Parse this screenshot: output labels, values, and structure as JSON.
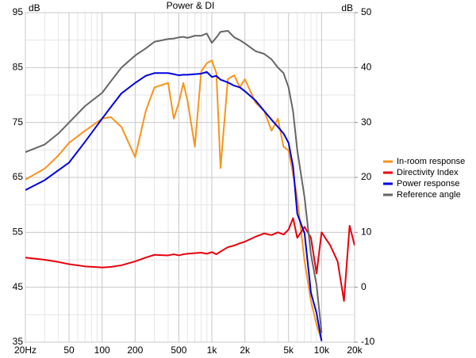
{
  "chart_data": {
    "type": "line",
    "title": "Power & DI",
    "y_label": "dB",
    "y2_label": "dB",
    "log_x": true,
    "grid": true,
    "legend_position": "right",
    "x": [
      20,
      30,
      40,
      50,
      70,
      100,
      120,
      150,
      200,
      250,
      300,
      400,
      450,
      500,
      550,
      600,
      700,
      800,
      900,
      1000,
      1100,
      1200,
      1400,
      1600,
      1800,
      2000,
      2500,
      3000,
      3500,
      4000,
      4500,
      5000,
      5500,
      6000,
      7000,
      8000,
      9000,
      10000,
      12000,
      14000,
      16000,
      18000,
      20000
    ],
    "xlim": [
      20,
      20000
    ],
    "xticks": [
      {
        "value": 20,
        "label": "20Hz"
      },
      50,
      100,
      200,
      500,
      {
        "value": 1000,
        "label": "1k"
      },
      {
        "value": 2000,
        "label": "2k"
      },
      {
        "value": 5000,
        "label": "5k"
      },
      {
        "value": 10000,
        "label": "10k"
      },
      {
        "value": 20000,
        "label": "20k"
      }
    ],
    "x_minor_ticks": [
      30,
      40,
      60,
      70,
      80,
      90,
      300,
      400,
      600,
      700,
      800,
      900,
      3000,
      4000,
      6000,
      7000,
      8000,
      9000
    ],
    "ylim": [
      35,
      95
    ],
    "yticks": [
      35,
      45,
      55,
      65,
      75,
      85,
      95
    ],
    "y_minor_ticks": [
      40,
      50,
      60,
      70,
      80,
      90
    ],
    "y2lim": [
      -10,
      50
    ],
    "y2ticks": [
      -10,
      0,
      10,
      20,
      30,
      40,
      50
    ],
    "series": [
      {
        "name": "In-room response",
        "color": "#f7941d",
        "values": [
          64.6,
          66.6,
          69,
          71.3,
          73.5,
          75.7,
          76,
          74.2,
          68.7,
          77.1,
          81.4,
          82.2,
          75.7,
          78.6,
          82.2,
          79,
          70.6,
          84.3,
          85.8,
          86.3,
          84,
          66.7,
          82.9,
          83.6,
          81.4,
          82.9,
          78.6,
          77.1,
          73.5,
          75.7,
          70.6,
          69.9,
          65.6,
          61.3,
          49.7,
          42.5,
          38.2,
          35.3,
          null,
          null,
          null,
          null,
          null
        ]
      },
      {
        "name": "Directivity Index",
        "color": "#e8000b",
        "axis": "y2",
        "values": [
          5.4,
          5,
          4.6,
          4.2,
          3.8,
          3.6,
          3.7,
          4,
          4.7,
          5.4,
          5.9,
          5.8,
          6,
          5.8,
          6,
          6.1,
          6.2,
          6.3,
          6.1,
          6.4,
          6,
          6.5,
          7.3,
          7.6,
          8,
          8.3,
          9.2,
          9.8,
          9.5,
          10,
          9.6,
          10.5,
          12.6,
          9,
          11,
          9,
          2.5,
          10,
          7.6,
          4.7,
          -2.5,
          11.2,
          7.6
        ]
      },
      {
        "name": "Power response",
        "color": "#0000dd",
        "values": [
          62.7,
          64.5,
          66.3,
          67.7,
          71.5,
          75.7,
          77.8,
          80.3,
          82.2,
          83.5,
          84,
          84,
          83.8,
          83.6,
          83.7,
          83.7,
          83.8,
          83.9,
          84.2,
          83.3,
          83.5,
          82.8,
          82.3,
          81.7,
          81.4,
          80.7,
          79,
          77.1,
          75.5,
          74.2,
          73,
          71.3,
          67,
          58.4,
          54.8,
          44,
          40.3,
          35.2,
          null,
          null,
          null,
          null,
          null
        ]
      },
      {
        "name": "Reference angle",
        "color": "#666666",
        "values": [
          69.6,
          71,
          73,
          75,
          78,
          80.4,
          82.5,
          85,
          87.2,
          88.5,
          89.7,
          90.2,
          90.3,
          90.5,
          90.6,
          90.4,
          90.8,
          90.8,
          91.2,
          89.5,
          90.5,
          91.5,
          91.7,
          90.5,
          90,
          89.4,
          88,
          87.5,
          86.5,
          85,
          84,
          81.4,
          77,
          70,
          61.3,
          51,
          45.4,
          36.7,
          null,
          null,
          null,
          null,
          null
        ]
      }
    ]
  }
}
